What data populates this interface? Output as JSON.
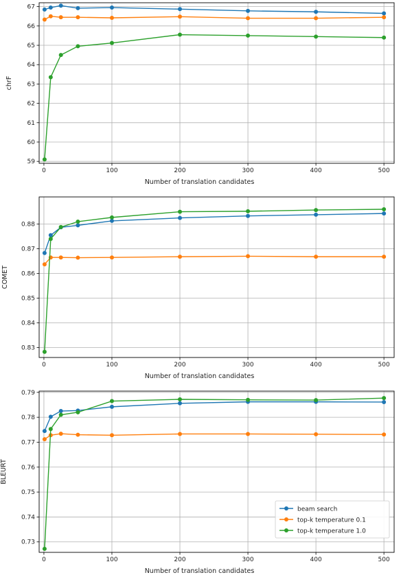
{
  "chart_data": [
    {
      "type": "line",
      "xlabel": "Number of translation candidates",
      "ylabel": "chrF",
      "xlim": [
        -7,
        515
      ],
      "ylim": [
        58.9,
        67.2
      ],
      "xticks": [
        0,
        100,
        200,
        300,
        400,
        500
      ],
      "yticks": [
        59,
        60,
        61,
        62,
        63,
        64,
        65,
        66,
        67
      ],
      "grid": true,
      "x": [
        1,
        10,
        25,
        50,
        100,
        200,
        300,
        400,
        500
      ],
      "series": [
        {
          "name": "beam search",
          "color": "#1f77b4",
          "values": [
            66.85,
            66.95,
            67.05,
            66.92,
            66.95,
            66.87,
            66.78,
            66.73,
            66.65
          ]
        },
        {
          "name": "top-k temperature 0.1",
          "color": "#ff7f0e",
          "values": [
            66.33,
            66.5,
            66.45,
            66.45,
            66.42,
            66.48,
            66.4,
            66.4,
            66.45
          ]
        },
        {
          "name": "top-k temperature 1.0",
          "color": "#2ca02c",
          "values": [
            59.1,
            63.35,
            64.5,
            64.95,
            65.12,
            65.55,
            65.5,
            65.45,
            65.4
          ]
        }
      ]
    },
    {
      "type": "line",
      "xlabel": "Number of translation candidates",
      "ylabel": "COMET",
      "xlim": [
        -7,
        515
      ],
      "ylim": [
        0.826,
        0.891
      ],
      "xticks": [
        0,
        100,
        200,
        300,
        400,
        500
      ],
      "yticks": [
        0.83,
        0.84,
        0.85,
        0.86,
        0.87,
        0.88
      ],
      "grid": true,
      "x": [
        1,
        10,
        25,
        50,
        100,
        200,
        300,
        400,
        500
      ],
      "series": [
        {
          "name": "beam search",
          "color": "#1f77b4",
          "values": [
            0.8683,
            0.8755,
            0.8787,
            0.8795,
            0.8813,
            0.8825,
            0.8833,
            0.8838,
            0.8843
          ]
        },
        {
          "name": "top-k temperature 0.1",
          "color": "#ff7f0e",
          "values": [
            0.8637,
            0.8665,
            0.8665,
            0.8664,
            0.8665,
            0.8668,
            0.867,
            0.8668,
            0.8668
          ]
        },
        {
          "name": "top-k temperature 1.0",
          "color": "#2ca02c",
          "values": [
            0.8283,
            0.874,
            0.8788,
            0.881,
            0.8827,
            0.885,
            0.8852,
            0.8857,
            0.886
          ]
        }
      ]
    },
    {
      "type": "line",
      "xlabel": "Number of translation candidates",
      "ylabel": "BLEURT",
      "xlim": [
        -7,
        515
      ],
      "ylim": [
        0.7258,
        0.7905
      ],
      "xticks": [
        0,
        100,
        200,
        300,
        400,
        500
      ],
      "yticks": [
        0.73,
        0.74,
        0.75,
        0.76,
        0.77,
        0.78,
        0.79
      ],
      "grid": true,
      "legend": "lower-right",
      "x": [
        1,
        10,
        25,
        50,
        100,
        200,
        300,
        400,
        500
      ],
      "series": [
        {
          "name": "beam search",
          "color": "#1f77b4",
          "values": [
            0.7745,
            0.7802,
            0.7825,
            0.7827,
            0.7842,
            0.7856,
            0.7862,
            0.7862,
            0.7861
          ]
        },
        {
          "name": "top-k temperature 0.1",
          "color": "#ff7f0e",
          "values": [
            0.7712,
            0.7728,
            0.7734,
            0.773,
            0.7728,
            0.7733,
            0.7733,
            0.7732,
            0.7731
          ]
        },
        {
          "name": "top-k temperature 1.0",
          "color": "#2ca02c",
          "values": [
            0.7272,
            0.7753,
            0.781,
            0.782,
            0.7865,
            0.7872,
            0.787,
            0.7869,
            0.7877
          ]
        }
      ]
    }
  ]
}
